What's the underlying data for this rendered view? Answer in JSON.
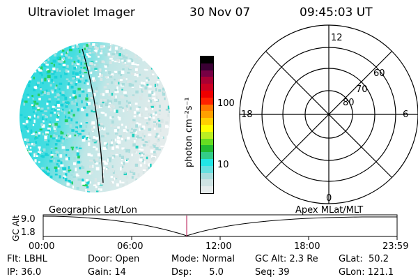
{
  "header": {
    "title": "Ultraviolet Imager",
    "date": "30 Nov 07",
    "time": "09:45:03 UT"
  },
  "colorbar": {
    "label": "photon cm⁻²s⁻¹",
    "ticks": [
      "100",
      "10"
    ],
    "colors": [
      "#e6ecec",
      "#cfe3e3",
      "#aadddd",
      "#66e0e0",
      "#22e6e6",
      "#33cc88",
      "#22bb33",
      "#66dd22",
      "#bbee22",
      "#ffff00",
      "#ffd000",
      "#ffa000",
      "#ff7700",
      "#ff2200",
      "#ee0000",
      "#cc0022",
      "#aa0033",
      "#770044",
      "#3a0033",
      "#000000"
    ]
  },
  "polar": {
    "mlt_labels": {
      "top": "12",
      "bottom": "0",
      "left": "18",
      "right": "6"
    },
    "lat_labels": [
      "60",
      "70",
      "80"
    ]
  },
  "timeline": {
    "left_label": "Geographic Lat/Lon",
    "right_label": "Apex MLat/MLT",
    "axis_title": "GC Alt",
    "y_ticks": [
      "9.0",
      "1.8"
    ],
    "x_ticks": [
      "00:00",
      "06:00",
      "12:00",
      "18:00",
      "23:59"
    ]
  },
  "status": {
    "flt": "Flt: LBHL",
    "ip": "IP: 36.0",
    "door": "Door: Open",
    "gain": "Gain: 14",
    "mode": "Mode: Normal",
    "dsp": "Dsp:      5.0",
    "gcalt": "GC Alt: 2.3 Re",
    "seq": "Seq: 39",
    "glat": "GLat:  50.2",
    "glon": "GLon: 121.1"
  }
}
